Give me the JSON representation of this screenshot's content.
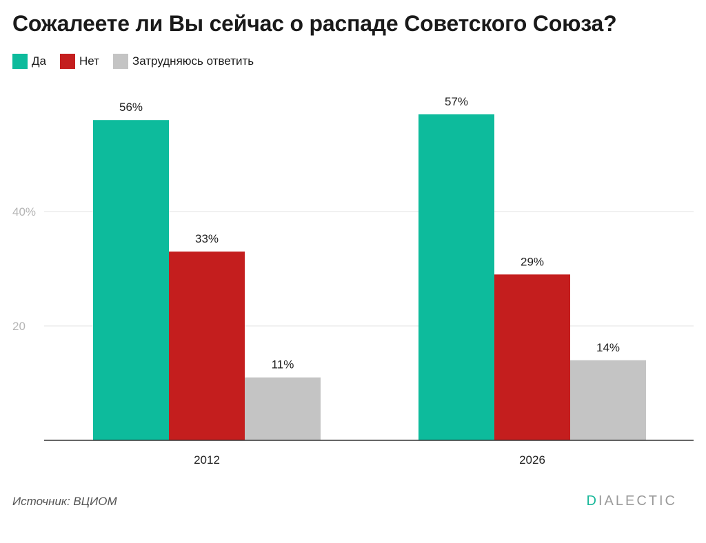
{
  "colors": {
    "yes": "#0dbb9c",
    "no": "#c41e1e",
    "undecided": "#c4c4c4"
  },
  "chart_data": {
    "type": "bar",
    "title": "Сожалеете ли Вы сейчас о распаде Советского Союза?",
    "categories": [
      "2012",
      "2026"
    ],
    "series": [
      {
        "name": "Да",
        "values": [
          56,
          57
        ]
      },
      {
        "name": "Нет",
        "values": [
          33,
          29
        ]
      },
      {
        "name": "Затрудняюсь ответить",
        "values": [
          11,
          14
        ]
      }
    ],
    "data_labels": [
      [
        "56%",
        "57%"
      ],
      [
        "33%",
        "29%"
      ],
      [
        "11%",
        "14%"
      ]
    ],
    "yticks": [
      20,
      40
    ],
    "ytick_labels": [
      "20",
      "40%"
    ],
    "ylim": [
      0,
      60
    ],
    "grid": true,
    "legend_position": "top-left"
  },
  "footer": {
    "source": "Источник: ВЦИОМ",
    "brand_first": "D",
    "brand_rest": "IALECTIC"
  }
}
